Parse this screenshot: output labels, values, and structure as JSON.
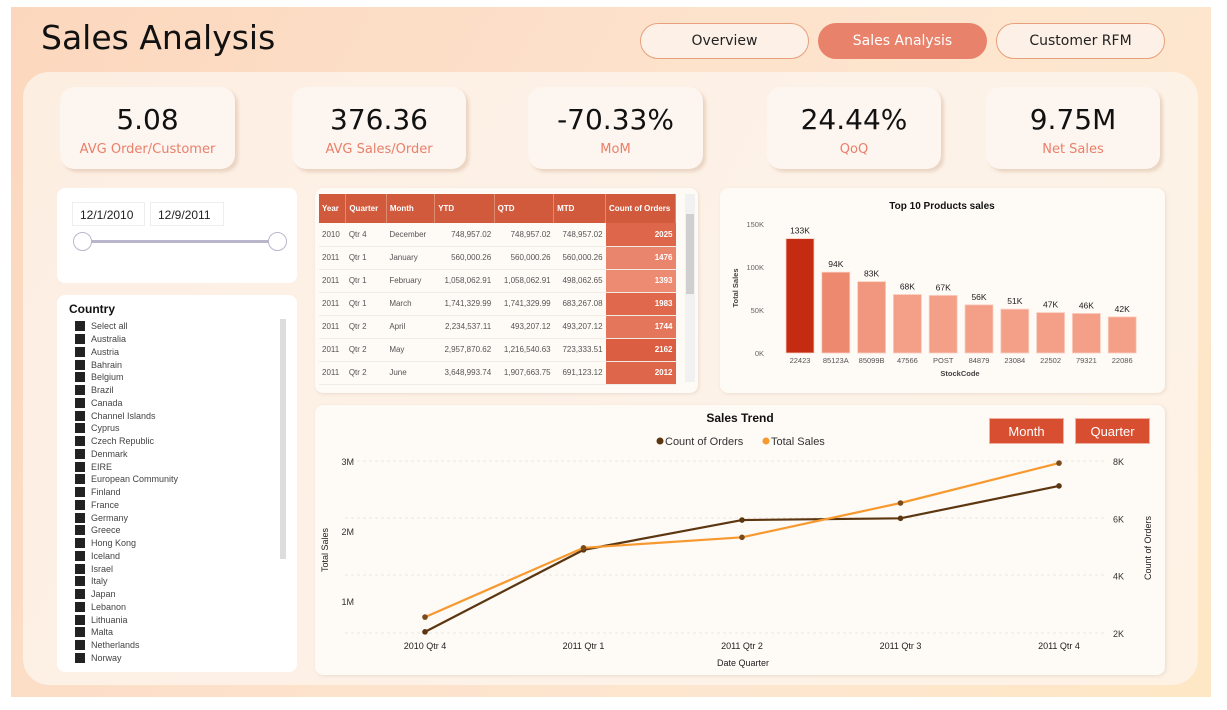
{
  "header": {
    "title": "Sales Analysis"
  },
  "nav": {
    "items": [
      {
        "label": "Overview"
      },
      {
        "label": "Sales Analysis"
      },
      {
        "label": "Customer RFM"
      }
    ],
    "active": "Sales Analysis"
  },
  "kpis": [
    {
      "value": "5.08",
      "label": "AVG Order/Customer"
    },
    {
      "value": "376.36",
      "label": "AVG Sales/Order"
    },
    {
      "value": "-70.33%",
      "label": "MoM"
    },
    {
      "value": "24.44%",
      "label": "QoQ"
    },
    {
      "value": "9.75M",
      "label": "Net Sales"
    }
  ],
  "date_slicer": {
    "start": "12/1/2010",
    "end": "12/9/2011"
  },
  "country_slicer": {
    "title": "Country",
    "items": [
      "Select all",
      "Australia",
      "Austria",
      "Bahrain",
      "Belgium",
      "Brazil",
      "Canada",
      "Channel Islands",
      "Cyprus",
      "Czech Republic",
      "Denmark",
      "EIRE",
      "European Community",
      "Finland",
      "France",
      "Germany",
      "Greece",
      "Hong Kong",
      "Iceland",
      "Israel",
      "Italy",
      "Japan",
      "Lebanon",
      "Lithuania",
      "Malta",
      "Netherlands",
      "Norway"
    ]
  },
  "table": {
    "columns": [
      "Year",
      "Quarter",
      "Month",
      "YTD",
      "QTD",
      "MTD",
      "Count of Orders"
    ],
    "rows": [
      [
        "2010",
        "Qtr 4",
        "December",
        "748,957.02",
        "748,957.02",
        "748,957.02",
        "2025"
      ],
      [
        "2011",
        "Qtr 1",
        "January",
        "560,000.26",
        "560,000.26",
        "560,000.26",
        "1476"
      ],
      [
        "2011",
        "Qtr 1",
        "February",
        "1,058,062.91",
        "1,058,062.91",
        "498,062.65",
        "1393"
      ],
      [
        "2011",
        "Qtr 1",
        "March",
        "1,741,329.99",
        "1,741,329.99",
        "683,267.08",
        "1983"
      ],
      [
        "2011",
        "Qtr 2",
        "April",
        "2,234,537.11",
        "493,207.12",
        "493,207.12",
        "1744"
      ],
      [
        "2011",
        "Qtr 2",
        "May",
        "2,957,870.62",
        "1,216,540.63",
        "723,333.51",
        "2162"
      ],
      [
        "2011",
        "Qtr 2",
        "June",
        "3,648,993.74",
        "1,907,663.75",
        "691,123.12",
        "2012"
      ]
    ],
    "accent": "#d15a3d"
  },
  "chart_data": [
    {
      "type": "bar",
      "title": "Top 10 Products sales",
      "xlabel": "StockCode",
      "ylabel": "Total Sales",
      "categories": [
        "22423",
        "85123A",
        "85099B",
        "47566",
        "POST",
        "84879",
        "23084",
        "22502",
        "79321",
        "22086"
      ],
      "values": [
        133000,
        94000,
        83000,
        68000,
        67000,
        56000,
        51000,
        47000,
        46000,
        42000
      ],
      "data_labels": [
        "133K",
        "94K",
        "83K",
        "68K",
        "67K",
        "56K",
        "51K",
        "47K",
        "46K",
        "42K"
      ],
      "yticks": [
        "0K",
        "50K",
        "100K",
        "150K"
      ],
      "ylim": [
        0,
        150000
      ],
      "colors": {
        "max": "#c42b10",
        "min": "#f4a088"
      }
    },
    {
      "type": "line",
      "title": "Sales Trend",
      "xlabel": "Date Quarter",
      "ylabel": "Total Sales",
      "y2label": "Count of Orders",
      "categories": [
        "2010 Qtr 4",
        "2011 Qtr 1",
        "2011 Qtr 2",
        "2011 Qtr 3",
        "2011 Qtr 4"
      ],
      "series": [
        {
          "name": "Count of Orders",
          "axis": "right",
          "color": "#5c3610",
          "values": [
            2040,
            4900,
            5940,
            6000,
            7130
          ]
        },
        {
          "name": "Total Sales",
          "axis": "left",
          "color": "#f7992f",
          "values": [
            770000,
            1760000,
            1910000,
            2400000,
            2970000
          ]
        }
      ],
      "yticks": [
        "1M",
        "2M",
        "3M"
      ],
      "y2ticks": [
        "2K",
        "4K",
        "6K",
        "8K"
      ],
      "legend": "top-center",
      "buttons": [
        "Month",
        "Quarter"
      ]
    }
  ]
}
